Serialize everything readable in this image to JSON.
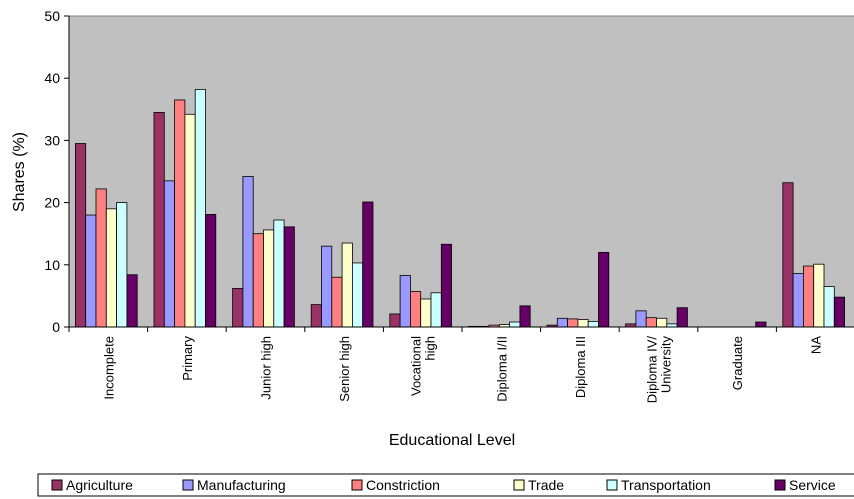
{
  "chart_data": {
    "type": "bar",
    "title": "",
    "xlabel": "Educational Level",
    "ylabel": "Shares (%)",
    "ylim": [
      0,
      50
    ],
    "yticks": [
      0,
      10,
      20,
      30,
      40,
      50
    ],
    "grid": false,
    "plot_background": "#c0c0c0",
    "legend_position": "bottom",
    "categories": [
      [
        "Incomplete"
      ],
      [
        "Primary"
      ],
      [
        "Junior high"
      ],
      [
        "Senior high"
      ],
      [
        "Vocational",
        "high"
      ],
      [
        "Diploma I/II"
      ],
      [
        "Diploma III"
      ],
      [
        "Diploma IV/",
        "University"
      ],
      [
        "Graduate"
      ],
      [
        "NA"
      ]
    ],
    "series": [
      {
        "name": "Agriculture",
        "color": "#993366",
        "values": [
          29.5,
          34.5,
          6.2,
          3.6,
          2.1,
          0.1,
          0.3,
          0.5,
          0.0,
          23.2
        ]
      },
      {
        "name": "Manufacturing",
        "color": "#9999ff",
        "values": [
          18.0,
          23.5,
          24.2,
          13.0,
          8.3,
          0.1,
          1.4,
          2.6,
          0.0,
          8.6
        ]
      },
      {
        "name": "Constriction",
        "color": "#ff8080",
        "values": [
          22.2,
          36.5,
          15.0,
          8.0,
          5.7,
          0.3,
          1.3,
          1.5,
          0.0,
          9.8
        ]
      },
      {
        "name": "Trade",
        "color": "#ffffcc",
        "values": [
          19.0,
          34.2,
          15.6,
          13.5,
          4.5,
          0.4,
          1.2,
          1.4,
          0.0,
          10.1
        ]
      },
      {
        "name": "Transportation",
        "color": "#ccffff",
        "values": [
          20.0,
          38.2,
          17.2,
          10.3,
          5.5,
          0.8,
          0.9,
          0.5,
          0.0,
          6.5
        ]
      },
      {
        "name": "Service",
        "color": "#660066",
        "values": [
          8.4,
          18.1,
          16.1,
          20.1,
          13.3,
          3.4,
          12.0,
          3.1,
          0.8,
          4.8
        ]
      }
    ]
  }
}
